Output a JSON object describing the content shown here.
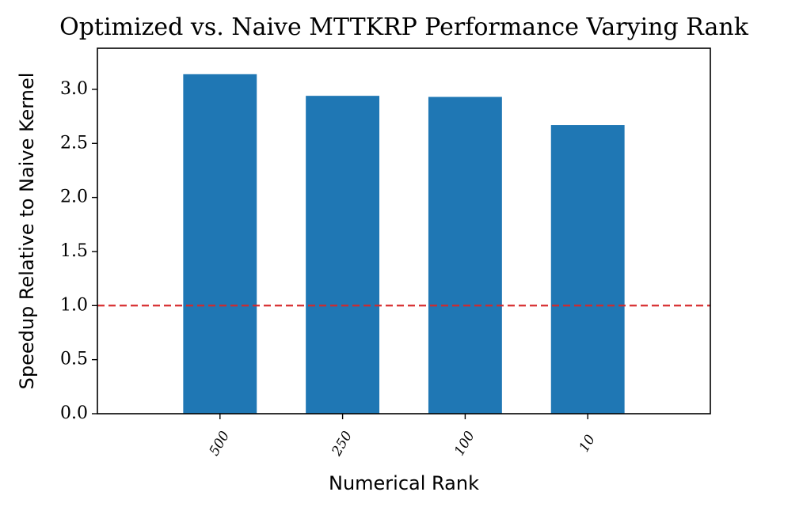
{
  "chart_data": {
    "type": "bar",
    "title": "Optimized vs. Naive MTTKRP Performance Varying Rank",
    "xlabel": "Numerical Rank",
    "ylabel": "Speedup Relative to Naive Kernel",
    "categories": [
      "500",
      "250",
      "100",
      "10"
    ],
    "values": [
      3.14,
      2.94,
      2.93,
      2.67
    ],
    "ylim": [
      0,
      3.38
    ],
    "yticks": [
      "0.0",
      "0.5",
      "1.0",
      "1.5",
      "2.0",
      "2.5",
      "3.0"
    ],
    "reference_line": {
      "y": 1.0,
      "style": "dashed",
      "color": "#d62728"
    },
    "bar_color": "#1f77b4",
    "grid": false,
    "legend": "none"
  }
}
